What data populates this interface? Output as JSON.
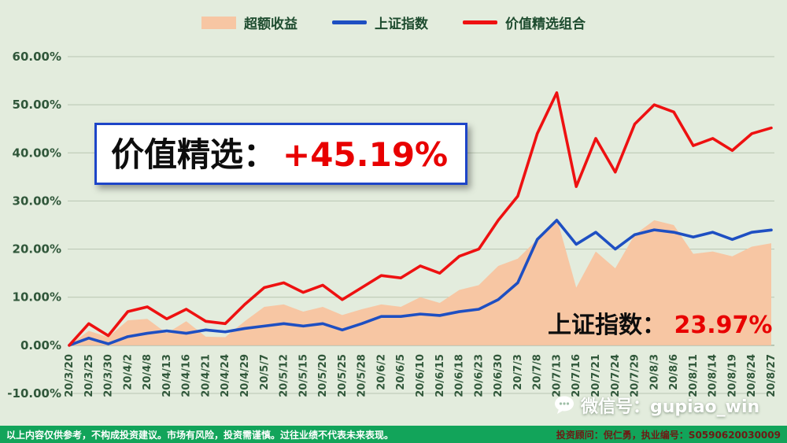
{
  "legend": {
    "items": [
      {
        "label": "超额收益",
        "type": "area",
        "color": "#f7c6a3"
      },
      {
        "label": "上证指数",
        "type": "line",
        "color": "#1e4fc2"
      },
      {
        "label": "价值精选组合",
        "type": "line",
        "color": "#ee1111"
      }
    ]
  },
  "annotation": {
    "label": "价值精选：",
    "value": "+45.19%"
  },
  "shanghai_label": {
    "label": "上证指数：",
    "value": "23.97%"
  },
  "watermark": {
    "text": "微信号：gupiao_win"
  },
  "footer": {
    "left": "以上内容仅供参考，不构成投资建议。市场有风险，投资需谨慎。过往业绩不代表未来表现。",
    "right": "投资顾问：倪仁勇，执业编号：S0590620030009"
  },
  "chart_data": {
    "type": "line",
    "title": "",
    "xlabel": "",
    "ylabel": "",
    "ylim": [
      -10,
      60
    ],
    "ytick_step": 10,
    "grid": true,
    "legend_position": "top",
    "x_labels": [
      "20/3/20",
      "20/3/25",
      "20/3/30",
      "20/4/2",
      "20/4/8",
      "20/4/13",
      "20/4/16",
      "20/4/21",
      "20/4/24",
      "20/4/29",
      "20/5/7",
      "20/5/12",
      "20/5/15",
      "20/5/20",
      "20/5/25",
      "20/5/28",
      "20/6/2",
      "20/6/5",
      "20/6/10",
      "20/6/15",
      "20/6/18",
      "20/6/23",
      "20/6/30",
      "20/7/3",
      "20/7/8",
      "20/7/13",
      "20/7/16",
      "20/7/21",
      "20/7/24",
      "20/7/29",
      "20/8/3",
      "20/8/6",
      "20/8/11",
      "20/8/14",
      "20/8/19",
      "20/8/24",
      "20/8/27"
    ],
    "series": [
      {
        "name": "超额收益",
        "id": "excess-return-area",
        "type": "area",
        "color": "#f7c6a3",
        "values": [
          0,
          3.0,
          1.7,
          5.2,
          5.5,
          2.5,
          5.0,
          1.8,
          1.7,
          5.0,
          8.0,
          8.5,
          7.0,
          8.0,
          6.3,
          7.5,
          8.5,
          8.0,
          10.0,
          8.8,
          11.5,
          12.5,
          16.5,
          18.0,
          22.0,
          26.5,
          12.0,
          19.5,
          16.0,
          23.0,
          26.0,
          25.0,
          19.0,
          19.5,
          18.5,
          20.5,
          21.22
        ]
      },
      {
        "name": "上证指数",
        "id": "shanghai-index-line",
        "type": "line",
        "color": "#1e4fc2",
        "values": [
          0,
          1.5,
          0.3,
          1.8,
          2.5,
          3.0,
          2.5,
          3.2,
          2.8,
          3.5,
          4.0,
          4.5,
          4.0,
          4.5,
          3.2,
          4.5,
          6.0,
          6.0,
          6.5,
          6.2,
          7.0,
          7.5,
          9.5,
          13.0,
          22.0,
          26.0,
          21.0,
          23.5,
          20.0,
          23.0,
          24.0,
          23.5,
          22.5,
          23.5,
          22.0,
          23.5,
          23.97
        ]
      },
      {
        "name": "价值精选组合",
        "id": "value-select-line",
        "type": "line",
        "color": "#ee1111",
        "values": [
          0,
          4.5,
          2.0,
          7.0,
          8.0,
          5.5,
          7.5,
          5.0,
          4.5,
          8.5,
          12.0,
          13.0,
          11.0,
          12.5,
          9.5,
          12.0,
          14.5,
          14.0,
          16.5,
          15.0,
          18.5,
          20.0,
          26.0,
          31.0,
          44.0,
          52.5,
          33.0,
          43.0,
          36.0,
          46.0,
          50.0,
          48.5,
          41.5,
          43.0,
          40.5,
          44.0,
          45.19
        ]
      }
    ]
  }
}
